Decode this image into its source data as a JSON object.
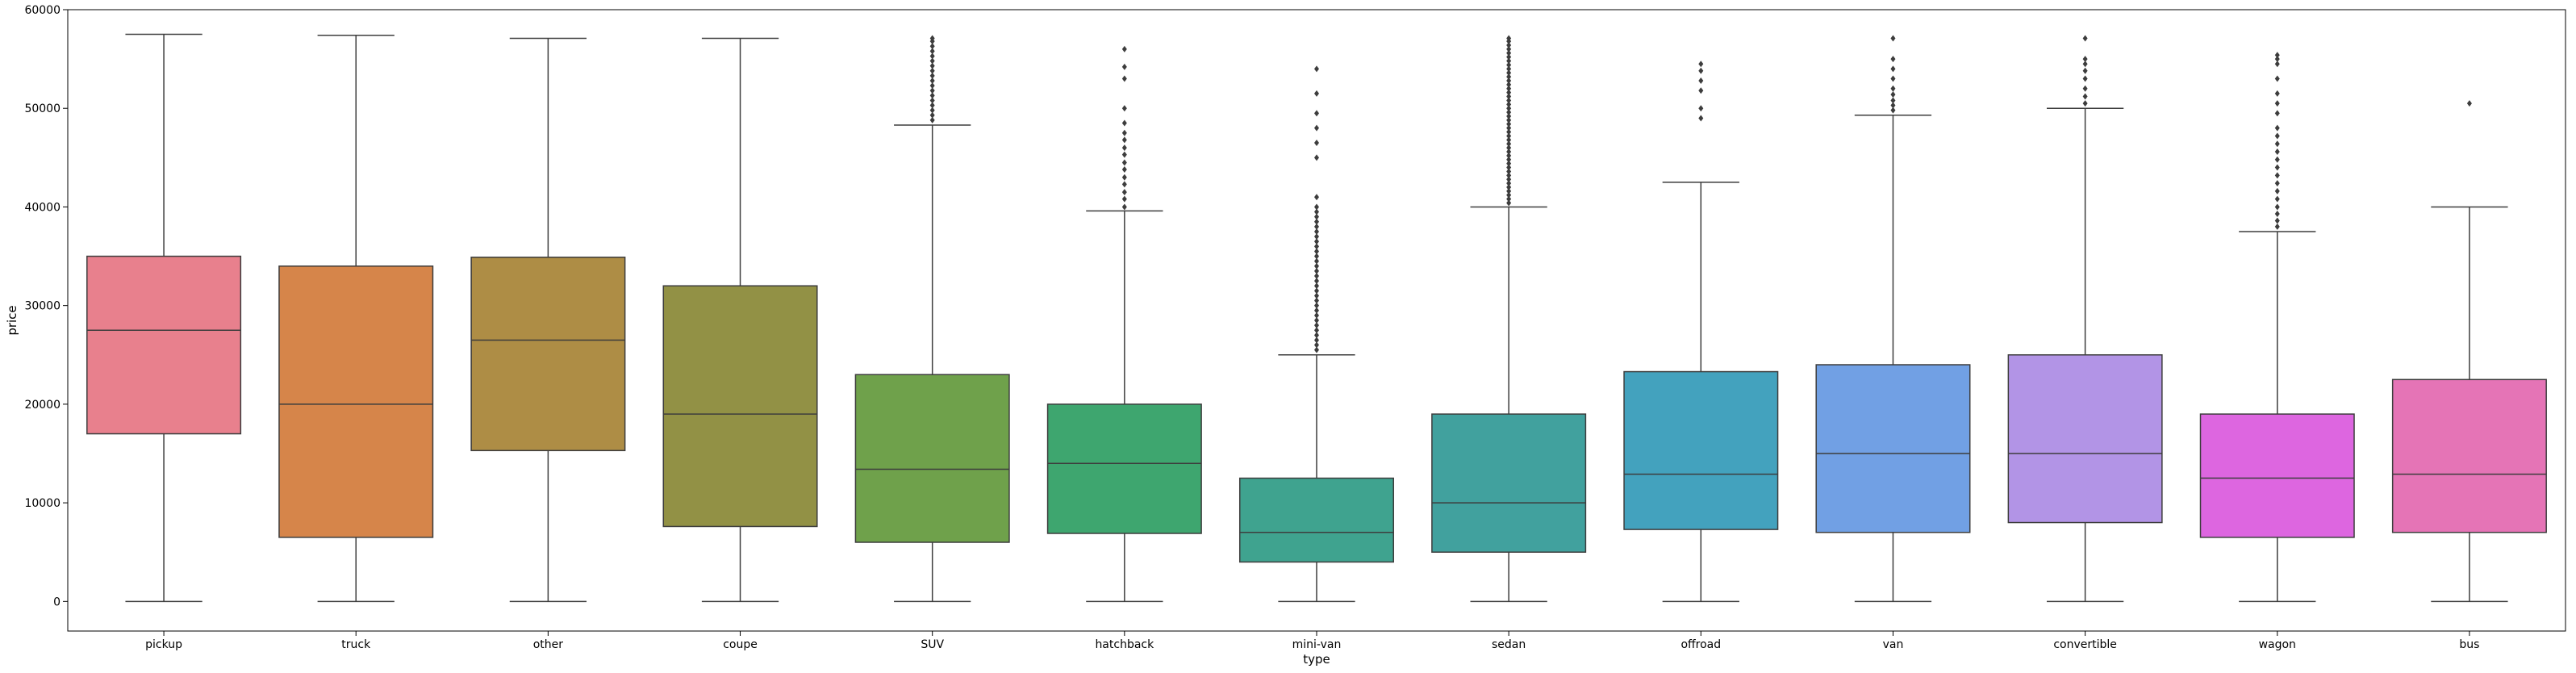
{
  "chart_data": {
    "type": "boxplot",
    "title": "",
    "xlabel": "type",
    "ylabel": "price",
    "ylim": [
      -3000,
      60000
    ],
    "yticks": [
      0,
      10000,
      20000,
      30000,
      40000,
      50000,
      60000
    ],
    "ytick_labels": [
      "0",
      "10000",
      "20000",
      "30000",
      "40000",
      "50000",
      "60000"
    ],
    "grid": false,
    "legend": "none",
    "categories": [
      "pickup",
      "truck",
      "other",
      "coupe",
      "SUV",
      "hatchback",
      "mini-van",
      "sedan",
      "offroad",
      "van",
      "convertible",
      "wagon",
      "bus"
    ],
    "boxes": [
      {
        "category": "pickup",
        "color": "#e8808d",
        "whisker_low": 0,
        "q1": 17000,
        "median": 27500,
        "q3": 35000,
        "whisker_high": 57500,
        "outliers": []
      },
      {
        "category": "truck",
        "color": "#d6854a",
        "whisker_low": 0,
        "q1": 6500,
        "median": 20000,
        "q3": 34000,
        "whisker_high": 57400,
        "outliers": []
      },
      {
        "category": "other",
        "color": "#ae8d45",
        "whisker_low": 0,
        "q1": 15300,
        "median": 26500,
        "q3": 34900,
        "whisker_high": 57100,
        "outliers": []
      },
      {
        "category": "coupe",
        "color": "#929145",
        "whisker_low": 0,
        "q1": 7600,
        "median": 19000,
        "q3": 32000,
        "whisker_high": 57100,
        "outliers": []
      },
      {
        "category": "SUV",
        "color": "#6fa14b",
        "whisker_low": 0,
        "q1": 6000,
        "median": 13400,
        "q3": 23000,
        "whisker_high": 48300,
        "outliers": [
          48800,
          49300,
          49800,
          50300,
          50800,
          51300,
          51800,
          52300,
          52800,
          53300,
          53800,
          54300,
          54800,
          55300,
          55800,
          56300,
          56800,
          57100
        ]
      },
      {
        "category": "hatchback",
        "color": "#3ea66f",
        "whisker_low": 0,
        "q1": 6900,
        "median": 14000,
        "q3": 20000,
        "whisker_high": 39600,
        "outliers": [
          40000,
          40800,
          41500,
          42300,
          43000,
          43800,
          44500,
          45300,
          46000,
          46800,
          47500,
          48500,
          50000,
          53000,
          54200,
          56000
        ]
      },
      {
        "category": "mini-van",
        "color": "#3fa38f",
        "whisker_low": 0,
        "q1": 4000,
        "median": 7000,
        "q3": 12500,
        "whisker_high": 25000,
        "outliers": [
          25500,
          26000,
          26500,
          27000,
          27500,
          28000,
          28500,
          29000,
          29500,
          30000,
          30500,
          31000,
          31500,
          32000,
          32500,
          33000,
          33500,
          34000,
          34500,
          35000,
          35500,
          36000,
          36500,
          37000,
          37500,
          38000,
          38500,
          39000,
          39500,
          40000,
          41000,
          45000,
          46500,
          48000,
          49500,
          51500,
          54000
        ]
      },
      {
        "category": "sedan",
        "color": "#41a19e",
        "whisker_low": 0,
        "q1": 5000,
        "median": 10000,
        "q3": 19000,
        "whisker_high": 40000,
        "outliers": [
          40400,
          40800,
          41200,
          41600,
          42000,
          42400,
          42800,
          43200,
          43600,
          44000,
          44400,
          44800,
          45200,
          45600,
          46000,
          46400,
          46800,
          47200,
          47600,
          48000,
          48400,
          48800,
          49200,
          49600,
          50000,
          50400,
          50800,
          51200,
          51600,
          52000,
          52400,
          52800,
          53200,
          53600,
          54000,
          54400,
          54800,
          55200,
          55600,
          56000,
          56400,
          56800,
          57100
        ]
      },
      {
        "category": "offroad",
        "color": "#43a2be",
        "whisker_low": 0,
        "q1": 7300,
        "median": 12900,
        "q3": 23300,
        "whisker_high": 42500,
        "outliers": [
          49000,
          50000,
          51800,
          52800,
          53800,
          54500
        ]
      },
      {
        "category": "van",
        "color": "#71a0e4",
        "whisker_low": 0,
        "q1": 7000,
        "median": 15000,
        "q3": 24000,
        "whisker_high": 49300,
        "outliers": [
          49800,
          50300,
          50800,
          51400,
          52000,
          53000,
          54000,
          55000,
          57100
        ]
      },
      {
        "category": "convertible",
        "color": "#b294e6",
        "whisker_low": 0,
        "q1": 8000,
        "median": 15000,
        "q3": 25000,
        "whisker_high": 50000,
        "outliers": [
          50500,
          51200,
          52000,
          53000,
          53800,
          54500,
          55000,
          57100
        ]
      },
      {
        "category": "wagon",
        "color": "#dd66e0",
        "whisker_low": 0,
        "q1": 6500,
        "median": 12500,
        "q3": 19000,
        "whisker_high": 37500,
        "outliers": [
          38000,
          38600,
          39300,
          40000,
          40800,
          41600,
          42400,
          43200,
          44000,
          44800,
          45600,
          46400,
          47200,
          48000,
          49500,
          50500,
          51500,
          53000,
          54500,
          55000,
          55400
        ]
      },
      {
        "category": "bus",
        "color": "#e574b6",
        "whisker_low": 0,
        "q1": 7000,
        "median": 12900,
        "q3": 22500,
        "whisker_high": 40000,
        "outliers": [
          50500
        ]
      }
    ]
  }
}
